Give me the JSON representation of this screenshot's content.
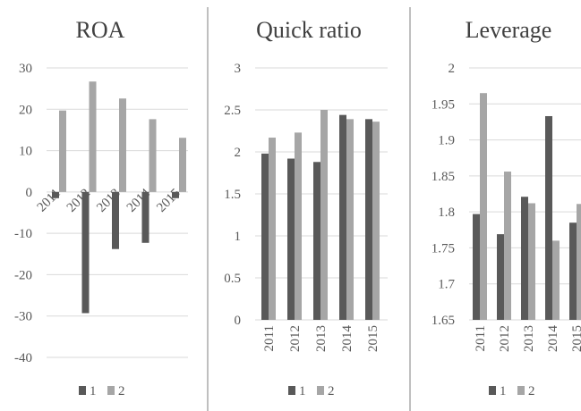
{
  "colors": {
    "series1": "#595959",
    "series2": "#a6a6a6"
  },
  "chart_data": [
    {
      "type": "bar",
      "title": "ROA",
      "categories": [
        "2011",
        "2012",
        "2013",
        "2014",
        "2015"
      ],
      "series": [
        {
          "name": "1",
          "values": [
            -1.5,
            -29.3,
            -13.8,
            -12.3,
            -1.5
          ]
        },
        {
          "name": "2",
          "values": [
            19.7,
            26.7,
            22.6,
            17.6,
            13.1
          ]
        }
      ],
      "ylim": [
        -40,
        30
      ],
      "yticks": [
        30,
        20,
        10,
        0,
        -10,
        -20,
        -30,
        -40
      ],
      "ytick_labels": [
        "30",
        "20",
        "10",
        "0",
        "-10",
        "-20",
        "-30",
        "-40"
      ],
      "grid": true,
      "legend": "bottom"
    },
    {
      "type": "bar",
      "title": "Quick ratio",
      "categories": [
        "2011",
        "2012",
        "2013",
        "2014",
        "2015"
      ],
      "series": [
        {
          "name": "1",
          "values": [
            1.98,
            1.92,
            1.88,
            2.44,
            2.39
          ]
        },
        {
          "name": "2",
          "values": [
            2.17,
            2.23,
            2.5,
            2.39,
            2.36
          ]
        }
      ],
      "ylim": [
        0,
        3
      ],
      "yticks": [
        3,
        2.5,
        2,
        1.5,
        1,
        0.5,
        0
      ],
      "ytick_labels": [
        "3",
        "2.5",
        "2",
        "1.5",
        "1",
        "0.5",
        "0"
      ],
      "grid": true,
      "legend": "bottom"
    },
    {
      "type": "bar",
      "title": "Leverage",
      "categories": [
        "2011",
        "2012",
        "2013",
        "2014",
        "2015"
      ],
      "series": [
        {
          "name": "1",
          "values": [
            1.797,
            1.769,
            1.821,
            1.933,
            1.785
          ]
        },
        {
          "name": "2",
          "values": [
            1.965,
            1.856,
            1.812,
            1.76,
            1.811
          ]
        }
      ],
      "ylim": [
        1.65,
        2.0
      ],
      "yticks": [
        2,
        1.95,
        1.9,
        1.85,
        1.8,
        1.75,
        1.7,
        1.65
      ],
      "ytick_labels": [
        "2",
        "1.95",
        "1.9",
        "1.85",
        "1.8",
        "1.75",
        "1.7",
        "1.65"
      ],
      "grid": true,
      "legend": "bottom"
    }
  ]
}
